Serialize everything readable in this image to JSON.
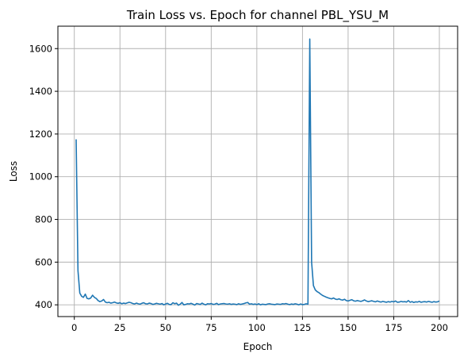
{
  "chart_data": {
    "type": "line",
    "title": "Train Loss vs. Epoch for channel PBL_YSU_M",
    "xlabel": "Epoch",
    "ylabel": "Loss",
    "xlim": [
      -9,
      210
    ],
    "ylim": [
      345,
      1705
    ],
    "xticks": [
      0,
      25,
      50,
      75,
      100,
      125,
      150,
      175,
      200
    ],
    "xtick_labels": [
      "0",
      "25",
      "50",
      "75",
      "100",
      "125",
      "150",
      "175",
      "200"
    ],
    "yticks": [
      400,
      600,
      800,
      1000,
      1200,
      1400,
      1600
    ],
    "ytick_labels": [
      "400",
      "600",
      "800",
      "1000",
      "1200",
      "1400",
      "1600"
    ],
    "grid": true,
    "legend": "none",
    "series": [
      {
        "color": "#1f77b4",
        "x": [
          1,
          2,
          3,
          4,
          5,
          6,
          7,
          8,
          9,
          10,
          11,
          12,
          13,
          14,
          15,
          16,
          17,
          18,
          19,
          20,
          21,
          22,
          23,
          24,
          25,
          26,
          27,
          28,
          29,
          30,
          31,
          32,
          33,
          34,
          35,
          36,
          37,
          38,
          39,
          40,
          41,
          42,
          43,
          44,
          45,
          46,
          47,
          48,
          49,
          50,
          51,
          52,
          53,
          54,
          55,
          56,
          57,
          58,
          59,
          60,
          61,
          62,
          63,
          64,
          65,
          66,
          67,
          68,
          69,
          70,
          71,
          72,
          73,
          74,
          75,
          76,
          77,
          78,
          79,
          80,
          81,
          82,
          83,
          84,
          85,
          86,
          87,
          88,
          89,
          90,
          91,
          92,
          93,
          94,
          95,
          96,
          97,
          98,
          99,
          100,
          101,
          102,
          103,
          104,
          105,
          106,
          107,
          108,
          109,
          110,
          111,
          112,
          113,
          114,
          115,
          116,
          117,
          118,
          119,
          120,
          121,
          122,
          123,
          124,
          125,
          126,
          127,
          128,
          129,
          130,
          131,
          132,
          133,
          134,
          135,
          136,
          137,
          138,
          139,
          140,
          141,
          142,
          143,
          144,
          145,
          146,
          147,
          148,
          149,
          150,
          151,
          152,
          153,
          154,
          155,
          156,
          157,
          158,
          159,
          160,
          161,
          162,
          163,
          164,
          165,
          166,
          167,
          168,
          169,
          170,
          171,
          172,
          173,
          174,
          175,
          176,
          177,
          178,
          179,
          180,
          181,
          182,
          183,
          184,
          185,
          186,
          187,
          188,
          189,
          190,
          191,
          192,
          193,
          194,
          195,
          196,
          197,
          198,
          199,
          200
        ],
        "y": [
          1175,
          560,
          455,
          440,
          435,
          450,
          430,
          428,
          432,
          445,
          435,
          430,
          420,
          415,
          418,
          425,
          413,
          410,
          412,
          408,
          410,
          413,
          409,
          407,
          410,
          405,
          408,
          406,
          409,
          412,
          410,
          406,
          404,
          408,
          405,
          403,
          407,
          410,
          405,
          404,
          408,
          406,
          402,
          404,
          407,
          405,
          403,
          406,
          400,
          404,
          407,
          402,
          401,
          410,
          405,
          408,
          398,
          403,
          411,
          400,
          402,
          405,
          404,
          407,
          403,
          399,
          406,
          404,
          402,
          408,
          403,
          400,
          405,
          404,
          406,
          402,
          403,
          407,
          401,
          404,
          405,
          406,
          404,
          403,
          405,
          402,
          404,
          403,
          401,
          405,
          402,
          404,
          406,
          409,
          411,
          403,
          405,
          402,
          404,
          401,
          405,
          400,
          403,
          402,
          401,
          404,
          405,
          403,
          402,
          401,
          404,
          403,
          402,
          405,
          404,
          406,
          403,
          401,
          404,
          402,
          405,
          403,
          400,
          404,
          401,
          402,
          405,
          403,
          1645,
          600,
          490,
          470,
          462,
          457,
          450,
          444,
          440,
          436,
          433,
          430,
          428,
          432,
          427,
          425,
          428,
          424,
          422,
          426,
          420,
          418,
          421,
          424,
          419,
          417,
          420,
          418,
          416,
          419,
          423,
          418,
          415,
          417,
          419,
          416,
          414,
          418,
          415,
          413,
          416,
          414,
          412,
          415,
          413,
          416,
          414,
          418,
          412,
          413,
          416,
          414,
          415,
          413,
          420,
          412,
          415,
          411,
          414,
          413,
          416,
          412,
          414,
          415,
          413,
          416,
          414,
          412,
          415,
          413,
          414,
          418
        ]
      }
    ]
  }
}
